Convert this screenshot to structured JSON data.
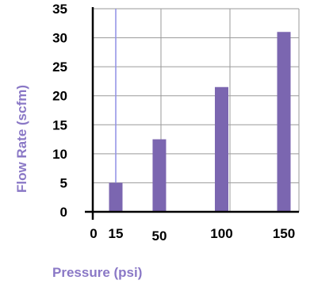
{
  "chart_data": {
    "type": "bar",
    "title": "",
    "xlabel": "Pressure (psi)",
    "ylabel": "Flow Rate  (scfm)",
    "x": [
      15,
      50,
      100,
      150
    ],
    "x_tick_labels": [
      "0",
      "15",
      "50",
      "100",
      "150"
    ],
    "values": [
      5,
      12.5,
      21.5,
      31
    ],
    "ylim": [
      0,
      35
    ],
    "y_ticks": [
      0,
      5,
      10,
      15,
      20,
      25,
      30,
      35
    ],
    "grid": true,
    "bar_color": "#7b66b0",
    "label_color": "#8a78c6",
    "reference_line_color": "#8f8fe6"
  }
}
